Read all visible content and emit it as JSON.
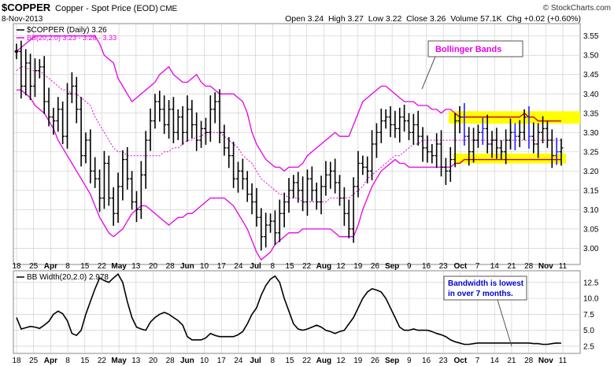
{
  "header": {
    "symbol": "$COPPER",
    "description": "Copper - Spot Price (EOD)",
    "exchange": "CME",
    "date": "8-Nov-2013",
    "watermark": "© StockCharts.com",
    "ohlc_line": "Open 3.24  High 3.27  Low 3.22  Close 3.26  Volume 57.1K  Chg +0.02 (+0.60%)",
    "legend_price": "$COPPER (Daily) 3.26",
    "legend_bb": "BB(20,2.0) 3.23 - 3.28 - 3.33",
    "legend_bbw": "BB Width(20,2.0) 2.978"
  },
  "annotations": {
    "bollinger": "Bollinger Bands",
    "bandwidth_line1": "Bandwidth is lowest",
    "bandwidth_line2": "in over 7 months."
  },
  "colors": {
    "price_bars": "#000000",
    "band": "#e600e6",
    "highlight": "#ffff00",
    "band_overlay": "#cc0000",
    "blue_marks": "#2020ff",
    "bollinger_text": "#e600e6",
    "bandwidth_text": "#0000cc",
    "grid": "#d0d0d0",
    "bbw_line": "#000000"
  },
  "chart_data": {
    "type": "line",
    "x_ticks": [
      "18",
      "25",
      "Apr",
      "8",
      "15",
      "22",
      "May",
      "13",
      "20",
      "28",
      "Jun",
      "10",
      "17",
      "24",
      "Jul",
      "8",
      "15",
      "22",
      "Aug",
      "12",
      "19",
      "26",
      "Sep",
      "9",
      "16",
      "23",
      "Oct",
      "7",
      "14",
      "21",
      "28",
      "Nov",
      "11"
    ],
    "price_panel": {
      "ylim": [
        2.96,
        3.58
      ],
      "y_ticks": [
        "3.00",
        "3.05",
        "3.10",
        "3.15",
        "3.20",
        "3.25",
        "3.30",
        "3.35",
        "3.40",
        "3.45",
        "3.50",
        "3.55"
      ],
      "series": [
        {
          "name": "$COPPER (Daily)",
          "kind": "ohlc-close",
          "values": [
            3.51,
            3.42,
            3.48,
            3.42,
            3.46,
            3.47,
            3.38,
            3.34,
            3.33,
            3.36,
            3.29,
            3.4,
            3.42,
            3.36,
            3.24,
            3.28,
            3.2,
            3.18,
            3.13,
            3.22,
            3.13,
            3.09,
            3.16,
            3.23,
            3.18,
            3.12,
            3.1,
            3.19,
            3.28,
            3.33,
            3.38,
            3.36,
            3.32,
            3.36,
            3.3,
            3.34,
            3.3,
            3.36,
            3.32,
            3.28,
            3.31,
            3.3,
            3.36,
            3.38,
            3.3,
            3.26,
            3.24,
            3.18,
            3.2,
            3.18,
            3.14,
            3.12,
            3.08,
            3.03,
            3.06,
            3.07,
            3.04,
            3.09,
            3.12,
            3.15,
            3.17,
            3.15,
            3.12,
            3.18,
            3.15,
            3.12,
            3.16,
            3.19,
            3.2,
            3.17,
            3.13,
            3.09,
            3.05,
            3.16,
            3.22,
            3.21,
            3.2,
            3.27,
            3.3,
            3.33,
            3.34,
            3.32,
            3.31,
            3.34,
            3.33,
            3.3,
            3.32,
            3.29,
            3.26,
            3.25,
            3.24,
            3.27,
            3.21,
            3.2,
            3.23,
            3.33,
            3.34,
            3.29,
            3.25,
            3.28,
            3.3,
            3.31,
            3.27,
            3.28,
            3.26,
            3.25,
            3.28,
            3.3,
            3.29,
            3.3,
            3.34,
            3.29,
            3.27,
            3.3,
            3.31,
            3.28,
            3.24,
            3.25,
            3.26
          ]
        },
        {
          "name": "BB upper",
          "kind": "line",
          "values": [
            3.51,
            3.52,
            3.53,
            3.54,
            3.55,
            3.55,
            3.55,
            3.55,
            3.55,
            3.55,
            3.55,
            3.55,
            3.55,
            3.55,
            3.55,
            3.55,
            3.55,
            3.55,
            3.53,
            3.5,
            3.49,
            3.48,
            3.44,
            3.42,
            3.4,
            3.38,
            3.39,
            3.4,
            3.41,
            3.42,
            3.43,
            3.45,
            3.46,
            3.47,
            3.45,
            3.44,
            3.43,
            3.43,
            3.44,
            3.45,
            3.43,
            3.42,
            3.42,
            3.41,
            3.4,
            3.4,
            3.4,
            3.4,
            3.39,
            3.38,
            3.35,
            3.3,
            3.27,
            3.25,
            3.23,
            3.22,
            3.21,
            3.21,
            3.2,
            3.21,
            3.21,
            3.21,
            3.22,
            3.24,
            3.25,
            3.26,
            3.27,
            3.28,
            3.29,
            3.3,
            3.29,
            3.29,
            3.29,
            3.32,
            3.35,
            3.38,
            3.39,
            3.4,
            3.41,
            3.42,
            3.42,
            3.41,
            3.4,
            3.39,
            3.38,
            3.38,
            3.38,
            3.37,
            3.37,
            3.37,
            3.36,
            3.36,
            3.35,
            3.36,
            3.36,
            3.35,
            3.34,
            3.34,
            3.34,
            3.34,
            3.34,
            3.34,
            3.34,
            3.34,
            3.34,
            3.34,
            3.34,
            3.34,
            3.34,
            3.34,
            3.35,
            3.34,
            3.34,
            3.33,
            3.33,
            3.33,
            3.33,
            3.33,
            3.33
          ]
        },
        {
          "name": "BB middle",
          "kind": "line",
          "values": [
            3.46,
            3.47,
            3.47,
            3.46,
            3.46,
            3.46,
            3.45,
            3.44,
            3.43,
            3.42,
            3.41,
            3.41,
            3.4,
            3.4,
            3.39,
            3.38,
            3.37,
            3.34,
            3.32,
            3.3,
            3.28,
            3.26,
            3.25,
            3.25,
            3.24,
            3.24,
            3.24,
            3.24,
            3.24,
            3.24,
            3.24,
            3.24,
            3.25,
            3.25,
            3.26,
            3.26,
            3.27,
            3.28,
            3.28,
            3.29,
            3.29,
            3.3,
            3.3,
            3.3,
            3.3,
            3.29,
            3.28,
            3.27,
            3.26,
            3.24,
            3.23,
            3.22,
            3.2,
            3.18,
            3.17,
            3.16,
            3.15,
            3.14,
            3.14,
            3.13,
            3.13,
            3.13,
            3.12,
            3.12,
            3.12,
            3.12,
            3.12,
            3.12,
            3.13,
            3.13,
            3.13,
            3.13,
            3.13,
            3.14,
            3.15,
            3.16,
            3.18,
            3.19,
            3.2,
            3.21,
            3.22,
            3.23,
            3.24,
            3.24,
            3.25,
            3.26,
            3.27,
            3.27,
            3.28,
            3.28,
            3.28,
            3.28,
            3.28,
            3.28,
            3.28,
            3.28,
            3.28,
            3.28,
            3.28,
            3.28,
            3.28,
            3.28,
            3.28,
            3.28,
            3.28,
            3.28,
            3.28,
            3.28,
            3.28,
            3.28,
            3.28,
            3.28,
            3.28,
            3.28,
            3.28,
            3.28,
            3.28,
            3.28,
            3.28
          ]
        },
        {
          "name": "BB lower",
          "kind": "line",
          "values": [
            3.41,
            3.41,
            3.4,
            3.39,
            3.37,
            3.36,
            3.35,
            3.33,
            3.31,
            3.28,
            3.26,
            3.24,
            3.22,
            3.2,
            3.18,
            3.16,
            3.14,
            3.11,
            3.08,
            3.06,
            3.04,
            3.03,
            3.04,
            3.05,
            3.07,
            3.09,
            3.1,
            3.11,
            3.11,
            3.1,
            3.09,
            3.08,
            3.07,
            3.06,
            3.07,
            3.08,
            3.08,
            3.09,
            3.09,
            3.1,
            3.11,
            3.12,
            3.13,
            3.13,
            3.13,
            3.13,
            3.12,
            3.11,
            3.09,
            3.07,
            3.05,
            3.02,
            2.99,
            2.97,
            2.98,
            2.99,
            3.01,
            3.02,
            3.03,
            3.04,
            3.04,
            3.04,
            3.05,
            3.05,
            3.05,
            3.05,
            3.05,
            3.05,
            3.05,
            3.04,
            3.03,
            3.03,
            3.03,
            3.03,
            3.06,
            3.1,
            3.13,
            3.16,
            3.18,
            3.2,
            3.21,
            3.22,
            3.23,
            3.22,
            3.22,
            3.21,
            3.21,
            3.21,
            3.21,
            3.21,
            3.21,
            3.21,
            3.21,
            3.21,
            3.21,
            3.22,
            3.22,
            3.23,
            3.23,
            3.23,
            3.23,
            3.23,
            3.23,
            3.23,
            3.23,
            3.23,
            3.23,
            3.23,
            3.23,
            3.23,
            3.23,
            3.23,
            3.23,
            3.23,
            3.23,
            3.23,
            3.23,
            3.23,
            3.23
          ]
        }
      ]
    },
    "bbw_panel": {
      "ylim": [
        1.5,
        14.2
      ],
      "y_ticks": [
        "2.5",
        "5.0",
        "7.5",
        "10.0",
        "12.5"
      ],
      "series": [
        {
          "name": "BB Width(20,2.0)",
          "kind": "line",
          "values": [
            7.0,
            5.2,
            5.4,
            5.6,
            5.5,
            5.3,
            5.8,
            6.4,
            7.5,
            8.0,
            7.6,
            6.5,
            4.5,
            4.2,
            5.0,
            7.5,
            9.5,
            11.5,
            13.2,
            12.8,
            12.5,
            13.2,
            13.8,
            12.5,
            9.5,
            7.0,
            5.5,
            5.2,
            5.0,
            6.3,
            7.0,
            7.5,
            7.8,
            7.5,
            7.0,
            6.5,
            5.8,
            4.0,
            3.5,
            3.5,
            3.5,
            3.8,
            4.5,
            4.2,
            4.0,
            4.0,
            4.0,
            4.0,
            4.3,
            4.8,
            6.0,
            7.5,
            8.5,
            10.5,
            12.0,
            13.0,
            13.5,
            12.5,
            10.0,
            8.0,
            6.0,
            5.2,
            5.0,
            5.2,
            5.5,
            5.8,
            5.5,
            5.0,
            4.8,
            4.5,
            4.8,
            5.0,
            6.0,
            7.0,
            8.5,
            10.0,
            11.0,
            11.5,
            11.3,
            11.0,
            10.0,
            8.5,
            7.0,
            5.5,
            5.0,
            5.0,
            5.2,
            5.0,
            5.0,
            5.0,
            4.8,
            4.5,
            4.3,
            4.0,
            3.5,
            3.2,
            3.0,
            2.8,
            2.8,
            2.9,
            3.0,
            3.0,
            3.0,
            3.0,
            3.0,
            3.0,
            3.0,
            3.0,
            3.0,
            3.0,
            3.0,
            3.0,
            2.9,
            2.9,
            2.8,
            2.8,
            2.9,
            3.0,
            2.98
          ]
        }
      ]
    }
  }
}
